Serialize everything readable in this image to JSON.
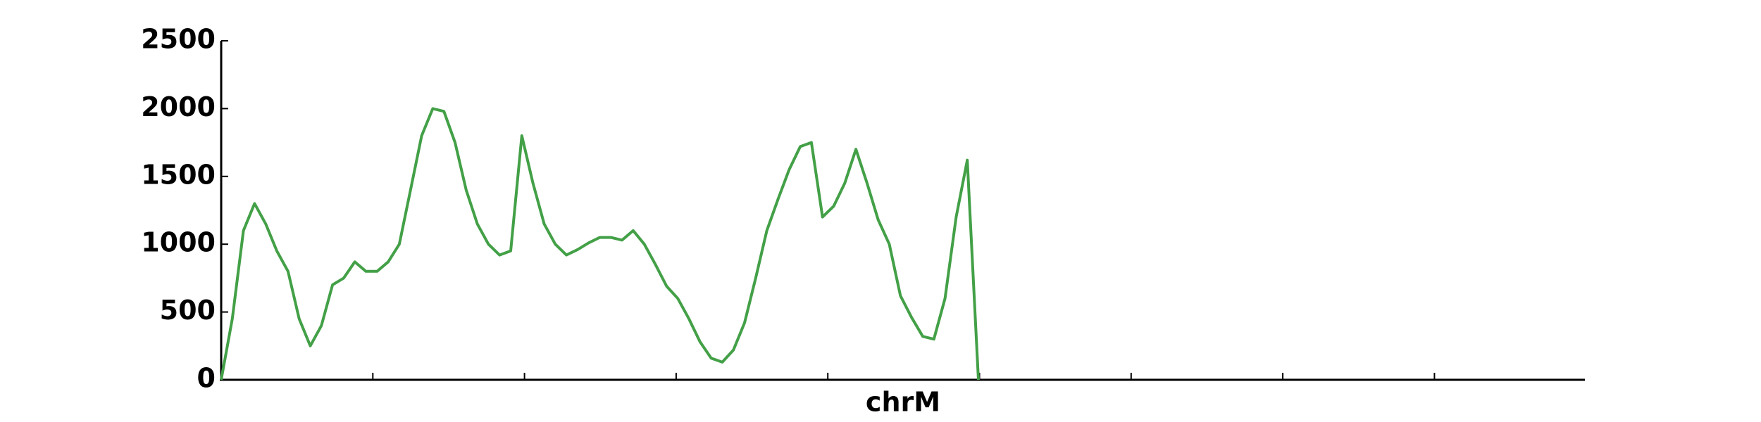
{
  "chart_data": {
    "type": "line",
    "xlabel": "chrM",
    "series": [
      {
        "color": "#43a047",
        "values": [
          0,
          450,
          1100,
          1300,
          1150,
          950,
          800,
          450,
          250,
          400,
          700,
          750,
          870,
          800,
          800,
          870,
          1000,
          1400,
          1800,
          2000,
          1980,
          1750,
          1400,
          1150,
          1000,
          920,
          950,
          1800,
          1450,
          1150,
          1000,
          920,
          960,
          1010,
          1050,
          1050,
          1030,
          1100,
          1000,
          850,
          690,
          600,
          450,
          280,
          160,
          130,
          220,
          420,
          750,
          1100,
          1330,
          1550,
          1720,
          1750,
          1200,
          1280,
          1450,
          1700,
          1450,
          1180,
          1000,
          620,
          460,
          320,
          300,
          600,
          1200,
          1620,
          0
        ]
      }
    ],
    "ylim": [
      0,
      2500
    ],
    "yticks": [
      0,
      500,
      1000,
      1500,
      2000,
      2500
    ]
  }
}
